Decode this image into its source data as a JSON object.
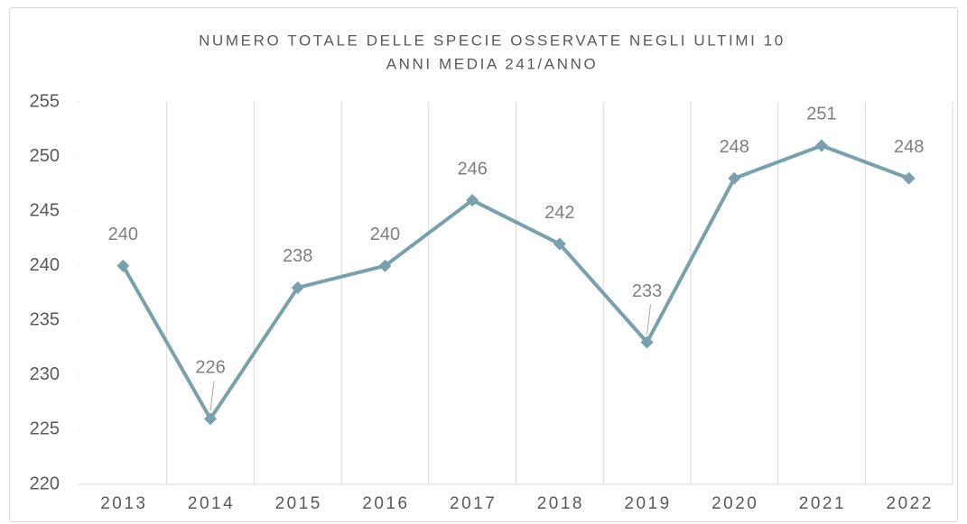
{
  "chart_data": {
    "type": "line",
    "title": [
      "NUMERO TOTALE DELLE SPECIE OSSERVATE NEGLI ULTIMI 10",
      "ANNI MEDIA 241/ANNO"
    ],
    "categories": [
      "2013",
      "2014",
      "2015",
      "2016",
      "2017",
      "2018",
      "2019",
      "2020",
      "2021",
      "2022"
    ],
    "series": [
      {
        "name": "Specie",
        "color": "#7a9fad",
        "values": [
          240,
          226,
          238,
          240,
          246,
          242,
          233,
          248,
          251,
          248
        ]
      }
    ],
    "ylim": [
      220,
      255
    ],
    "yticks": [
      220,
      225,
      230,
      235,
      240,
      245,
      250,
      255
    ],
    "grid": true
  }
}
